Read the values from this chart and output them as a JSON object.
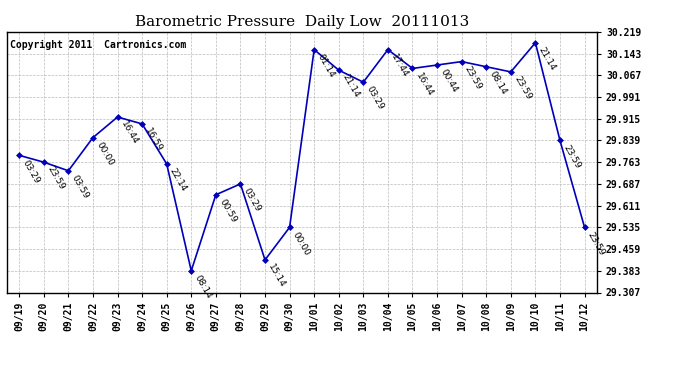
{
  "title": "Barometric Pressure  Daily Low  20111013",
  "copyright": "Copyright 2011  Cartronics.com",
  "x_labels": [
    "09/19",
    "09/20",
    "09/21",
    "09/22",
    "09/23",
    "09/24",
    "09/25",
    "09/26",
    "09/27",
    "09/28",
    "09/29",
    "09/30",
    "10/01",
    "10/02",
    "10/03",
    "10/04",
    "10/05",
    "10/06",
    "10/07",
    "10/08",
    "10/09",
    "10/10",
    "10/11",
    "10/12"
  ],
  "y_values": [
    29.787,
    29.763,
    29.733,
    29.849,
    29.921,
    29.897,
    29.757,
    29.383,
    29.649,
    29.687,
    29.421,
    29.535,
    30.157,
    30.085,
    30.043,
    30.157,
    30.091,
    30.103,
    30.115,
    30.097,
    30.079,
    30.181,
    29.839,
    29.535
  ],
  "point_labels": [
    "03:29",
    "23:59",
    "03:59",
    "00:00",
    "16:44",
    "16:59",
    "22:14",
    "08:14",
    "00:59",
    "03:29",
    "15:14",
    "00:00",
    "01:14",
    "21:14",
    "03:29",
    "17:44",
    "16:44",
    "00:44",
    "23:59",
    "08:14",
    "23:59",
    "21:14",
    "23:59",
    "23:59"
  ],
  "y_ticks": [
    29.307,
    29.383,
    29.459,
    29.535,
    29.611,
    29.687,
    29.763,
    29.839,
    29.915,
    29.991,
    30.067,
    30.143,
    30.219
  ],
  "line_color": "#0000bb",
  "marker_color": "#0000bb",
  "bg_color": "#ffffff",
  "grid_color": "#bbbbbb",
  "title_fontsize": 11,
  "label_fontsize": 6.5,
  "tick_fontsize": 7,
  "copyright_fontsize": 7
}
